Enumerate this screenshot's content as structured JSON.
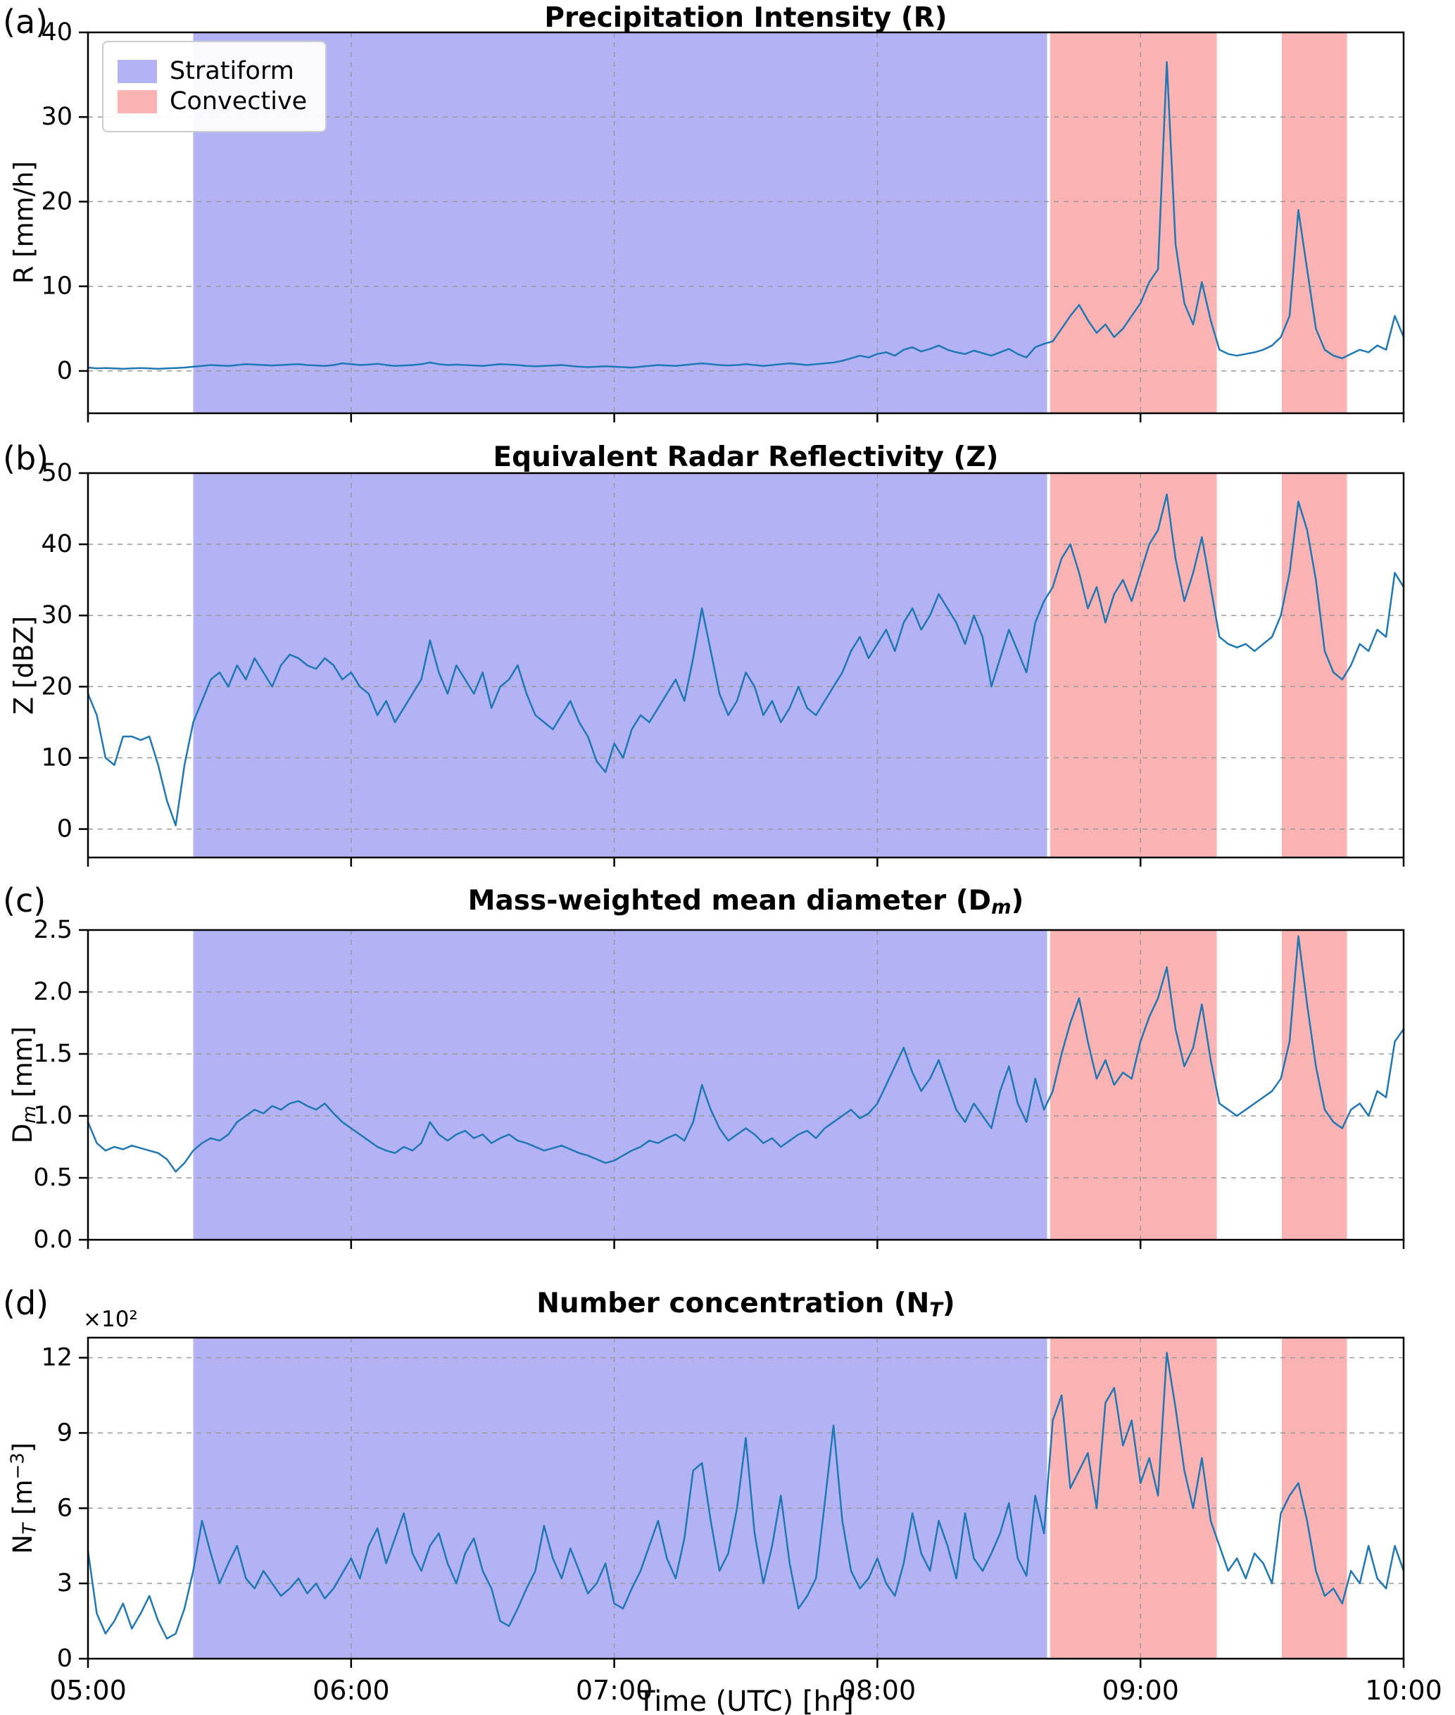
{
  "chart_data": {
    "type": "line",
    "xlabel": "Time (UTC) [hr]",
    "xlim": [
      5.0,
      10.0
    ],
    "x_start_hour": 5.0,
    "x_step_minutes": 2,
    "xtick_hours": [
      5,
      6,
      7,
      8,
      9,
      10
    ],
    "xtick_labels": [
      "05:00",
      "06:00",
      "07:00",
      "08:00",
      "09:00",
      "10:00"
    ],
    "line_color": "#1f77b4",
    "grid_color": "#9a9a9a",
    "grid_style": "dashed",
    "legend_position": "upper-left-panel-a",
    "legend": [
      {
        "label": "Stratiform",
        "color": "#b2b2f5"
      },
      {
        "label": "Convective",
        "color": "#fab2b2"
      }
    ],
    "regions": [
      {
        "label": "Stratiform",
        "start_hour": 5.4,
        "end_hour": 8.645,
        "color": "#b2b2f5"
      },
      {
        "label": "Convective",
        "start_hour": 8.657,
        "end_hour": 9.29,
        "color": "#fab2b2"
      },
      {
        "label": "Convective",
        "start_hour": 9.537,
        "end_hour": 9.785,
        "color": "#fab2b2"
      }
    ],
    "panels": [
      {
        "letter": "(a)",
        "title_parts": [
          {
            "t": "Precipitation Intensity (R)"
          }
        ],
        "ylabel_parts": [
          {
            "t": "R [mm/h]"
          }
        ],
        "ylim": [
          -5,
          40
        ],
        "yticks": [
          0,
          10,
          20,
          30,
          40
        ],
        "ytick_labels": [
          "0",
          "10",
          "20",
          "30",
          "40"
        ],
        "values": [
          0.4,
          0.3,
          0.35,
          0.3,
          0.25,
          0.3,
          0.35,
          0.3,
          0.25,
          0.3,
          0.35,
          0.4,
          0.5,
          0.6,
          0.7,
          0.65,
          0.6,
          0.7,
          0.8,
          0.75,
          0.7,
          0.65,
          0.7,
          0.75,
          0.8,
          0.7,
          0.65,
          0.6,
          0.7,
          0.9,
          0.8,
          0.7,
          0.75,
          0.85,
          0.7,
          0.6,
          0.65,
          0.7,
          0.8,
          1.0,
          0.8,
          0.7,
          0.75,
          0.7,
          0.65,
          0.6,
          0.7,
          0.8,
          0.75,
          0.7,
          0.6,
          0.55,
          0.6,
          0.65,
          0.7,
          0.6,
          0.5,
          0.45,
          0.5,
          0.55,
          0.5,
          0.45,
          0.4,
          0.5,
          0.6,
          0.7,
          0.65,
          0.6,
          0.7,
          0.8,
          0.9,
          0.8,
          0.7,
          0.65,
          0.7,
          0.8,
          0.7,
          0.6,
          0.7,
          0.8,
          0.9,
          0.8,
          0.7,
          0.8,
          0.9,
          1.0,
          1.2,
          1.5,
          1.8,
          1.6,
          2.0,
          2.2,
          1.8,
          2.5,
          2.8,
          2.3,
          2.6,
          3.0,
          2.5,
          2.2,
          2.0,
          2.4,
          2.1,
          1.8,
          2.2,
          2.6,
          2.0,
          1.6,
          2.8,
          3.2,
          3.5,
          5.0,
          6.5,
          7.8,
          6.0,
          4.5,
          5.5,
          4.0,
          5.0,
          6.5,
          8.0,
          10.5,
          12.0,
          36.5,
          15.0,
          8.0,
          5.5,
          10.5,
          6.0,
          2.5,
          2.0,
          1.8,
          2.0,
          2.2,
          2.5,
          3.0,
          4.0,
          6.5,
          19.0,
          12.0,
          5.0,
          2.5,
          1.8,
          1.5,
          2.0,
          2.5,
          2.2,
          3.0,
          2.5,
          6.5,
          4.0
        ]
      },
      {
        "letter": "(b)",
        "title_parts": [
          {
            "t": "Equivalent Radar Reflectivity (Z)"
          }
        ],
        "ylabel_parts": [
          {
            "t": "Z [dBZ]"
          }
        ],
        "ylim": [
          -4,
          50
        ],
        "yticks": [
          0,
          10,
          20,
          30,
          40,
          50
        ],
        "ytick_labels": [
          "0",
          "10",
          "20",
          "30",
          "40",
          "50"
        ],
        "values": [
          19,
          16,
          10,
          9,
          13,
          13,
          12.5,
          13,
          9,
          4,
          0.5,
          9,
          15,
          18,
          21,
          22,
          20,
          23,
          21,
          24,
          22,
          20,
          23,
          24.5,
          24,
          23,
          22.5,
          24,
          23,
          21,
          22,
          20,
          19,
          16,
          18,
          15,
          17,
          19,
          21,
          26.5,
          22,
          19,
          23,
          21,
          19,
          22,
          17,
          20,
          21,
          23,
          19,
          16,
          15,
          14,
          16,
          18,
          15,
          13,
          9.5,
          8,
          12,
          10,
          14,
          16,
          15,
          17,
          19,
          21,
          18,
          24,
          31,
          25,
          19,
          16,
          18,
          22,
          20,
          16,
          18,
          15,
          17,
          20,
          17,
          16,
          18,
          20,
          22,
          25,
          27,
          24,
          26,
          28,
          25,
          29,
          31,
          28,
          30,
          33,
          31,
          29,
          26,
          30,
          27,
          20,
          24,
          28,
          25,
          22,
          29,
          32,
          34,
          38,
          40,
          36,
          31,
          34,
          29,
          33,
          35,
          32,
          36,
          40,
          42,
          47,
          38,
          32,
          36,
          41,
          34,
          27,
          26,
          25.5,
          26,
          25,
          26,
          27,
          30,
          36,
          46,
          42,
          35,
          25,
          22,
          21,
          23,
          26,
          25,
          28,
          27,
          36,
          34
        ]
      },
      {
        "letter": "(c)",
        "title_parts": [
          {
            "t": "Mass-weighted mean diameter (D"
          },
          {
            "t": "m",
            "sub": true,
            "italic": true
          },
          {
            "t": ")"
          }
        ],
        "ylabel_parts": [
          {
            "t": "D"
          },
          {
            "t": "m",
            "sub": true,
            "italic": true
          },
          {
            "t": " [mm]"
          }
        ],
        "ylim": [
          0,
          2.5
        ],
        "yticks": [
          0,
          0.5,
          1.0,
          1.5,
          2.0,
          2.5
        ],
        "ytick_labels": [
          "0.0",
          "0.5",
          "1.0",
          "1.5",
          "2.0",
          "2.5"
        ],
        "values": [
          0.95,
          0.78,
          0.72,
          0.75,
          0.73,
          0.76,
          0.74,
          0.72,
          0.7,
          0.65,
          0.55,
          0.62,
          0.72,
          0.78,
          0.82,
          0.8,
          0.85,
          0.95,
          1.0,
          1.05,
          1.02,
          1.08,
          1.05,
          1.1,
          1.12,
          1.08,
          1.05,
          1.1,
          1.02,
          0.95,
          0.9,
          0.85,
          0.8,
          0.75,
          0.72,
          0.7,
          0.75,
          0.72,
          0.78,
          0.95,
          0.85,
          0.8,
          0.85,
          0.88,
          0.82,
          0.85,
          0.78,
          0.82,
          0.85,
          0.8,
          0.78,
          0.75,
          0.72,
          0.74,
          0.76,
          0.73,
          0.7,
          0.68,
          0.65,
          0.62,
          0.64,
          0.68,
          0.72,
          0.75,
          0.8,
          0.78,
          0.82,
          0.85,
          0.8,
          0.95,
          1.25,
          1.05,
          0.9,
          0.8,
          0.85,
          0.9,
          0.85,
          0.78,
          0.82,
          0.75,
          0.8,
          0.85,
          0.88,
          0.82,
          0.9,
          0.95,
          1.0,
          1.05,
          0.98,
          1.02,
          1.1,
          1.25,
          1.4,
          1.55,
          1.35,
          1.2,
          1.3,
          1.45,
          1.25,
          1.05,
          0.95,
          1.1,
          1.0,
          0.9,
          1.2,
          1.4,
          1.1,
          0.95,
          1.3,
          1.05,
          1.2,
          1.5,
          1.75,
          1.95,
          1.6,
          1.3,
          1.45,
          1.25,
          1.35,
          1.3,
          1.6,
          1.8,
          1.95,
          2.2,
          1.7,
          1.4,
          1.55,
          1.9,
          1.45,
          1.1,
          1.05,
          1.0,
          1.05,
          1.1,
          1.15,
          1.2,
          1.3,
          1.6,
          2.45,
          1.9,
          1.4,
          1.05,
          0.95,
          0.9,
          1.05,
          1.1,
          1.0,
          1.2,
          1.15,
          1.6,
          1.7
        ]
      },
      {
        "letter": "(d)",
        "title_parts": [
          {
            "t": "Number concentration (N"
          },
          {
            "t": "T",
            "sub": true,
            "italic": true
          },
          {
            "t": ")"
          }
        ],
        "ylabel_parts": [
          {
            "t": "N"
          },
          {
            "t": "T",
            "sub": true,
            "italic": true
          },
          {
            "t": " [m"
          },
          {
            "t": "−3",
            "sup": true
          },
          {
            "t": "]"
          }
        ],
        "offset_text": "×10²",
        "ylim": [
          0,
          12.8
        ],
        "yticks": [
          0,
          3,
          6,
          9,
          12
        ],
        "ytick_labels": [
          "0",
          "3",
          "6",
          "9",
          "12"
        ],
        "values": [
          4.3,
          1.8,
          1.0,
          1.5,
          2.2,
          1.2,
          1.8,
          2.5,
          1.5,
          0.8,
          1.0,
          2.0,
          3.5,
          5.5,
          4.2,
          3.0,
          3.8,
          4.5,
          3.2,
          2.8,
          3.5,
          3.0,
          2.5,
          2.8,
          3.2,
          2.6,
          3.0,
          2.4,
          2.8,
          3.4,
          4.0,
          3.2,
          4.5,
          5.2,
          3.8,
          4.8,
          5.8,
          4.2,
          3.5,
          4.5,
          5.0,
          3.8,
          3.0,
          4.2,
          4.8,
          3.5,
          2.8,
          1.5,
          1.3,
          2.0,
          2.8,
          3.5,
          5.3,
          4.0,
          3.2,
          4.4,
          3.5,
          2.6,
          3.0,
          3.8,
          2.2,
          2.0,
          2.8,
          3.5,
          4.5,
          5.5,
          4.0,
          3.2,
          4.8,
          7.5,
          7.8,
          5.5,
          3.5,
          4.2,
          6.0,
          8.8,
          5.0,
          3.0,
          4.5,
          6.5,
          3.8,
          2.0,
          2.5,
          3.2,
          6.2,
          9.3,
          5.5,
          3.5,
          2.8,
          3.2,
          4.0,
          3.0,
          2.5,
          3.8,
          5.8,
          4.2,
          3.5,
          5.5,
          4.5,
          3.2,
          5.8,
          4.0,
          3.5,
          4.2,
          5.0,
          6.2,
          4.0,
          3.3,
          6.5,
          5.0,
          9.5,
          10.5,
          6.8,
          7.5,
          8.2,
          6.0,
          10.2,
          10.8,
          8.5,
          9.5,
          7.0,
          8.0,
          6.5,
          12.2,
          10.0,
          7.5,
          6.0,
          8.0,
          5.5,
          4.5,
          3.5,
          4.0,
          3.2,
          4.2,
          3.8,
          3.0,
          5.8,
          6.5,
          7.0,
          5.5,
          3.5,
          2.5,
          2.8,
          2.2,
          3.5,
          3.0,
          4.5,
          3.2,
          2.8,
          4.5,
          3.5
        ]
      }
    ]
  }
}
